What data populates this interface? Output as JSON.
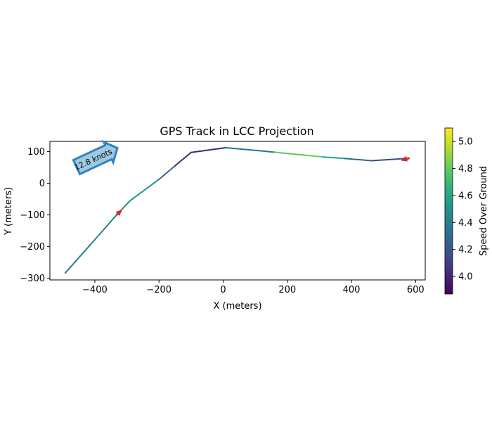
{
  "chart_data": {
    "type": "line",
    "title": "GPS Track in LCC Projection",
    "xlabel": "X (meters)",
    "ylabel": "Y (meters)",
    "xlim": [
      -540,
      630
    ],
    "ylim": [
      -305,
      132
    ],
    "x_ticks": [
      -400,
      -200,
      0,
      200,
      400,
      600
    ],
    "x_tick_labels": [
      "−400",
      "−200",
      "0",
      "200",
      "400",
      "600"
    ],
    "y_ticks": [
      -300,
      -200,
      -100,
      0,
      100
    ],
    "y_tick_labels": [
      "−300",
      "−200",
      "−100",
      "0",
      "100"
    ],
    "grid": false,
    "colormap": "viridis",
    "colorbar": {
      "label": "Speed Over Ground",
      "range": [
        3.87,
        5.1
      ],
      "ticks": [
        4.0,
        4.2,
        4.4,
        4.6,
        4.8,
        5.0
      ],
      "tick_labels": [
        "4.0",
        "4.2",
        "4.4",
        "4.6",
        "4.8",
        "5.0"
      ]
    },
    "track": [
      {
        "x": -492,
        "y": -283,
        "speed": 4.38
      },
      {
        "x": -400,
        "y": -178,
        "speed": 4.38
      },
      {
        "x": -332,
        "y": -100,
        "speed": 4.45
      },
      {
        "x": -290,
        "y": -55,
        "speed": 4.5
      },
      {
        "x": -200,
        "y": 12,
        "speed": 4.52
      },
      {
        "x": -150,
        "y": 55,
        "speed": 4.05
      },
      {
        "x": -100,
        "y": 97,
        "speed": 4.0
      },
      {
        "x": 8,
        "y": 112,
        "speed": 4.0
      },
      {
        "x": 160,
        "y": 98,
        "speed": 4.68
      },
      {
        "x": 260,
        "y": 88,
        "speed": 4.9
      },
      {
        "x": 310,
        "y": 83,
        "speed": 4.75
      },
      {
        "x": 380,
        "y": 78,
        "speed": 4.45
      },
      {
        "x": 462,
        "y": 71,
        "speed": 4.15
      },
      {
        "x": 540,
        "y": 76,
        "speed": 4.15
      },
      {
        "x": 580,
        "y": 79,
        "speed": 4.2
      }
    ],
    "direction_arrows": [
      {
        "x": -332,
        "y": -100,
        "dx": 14,
        "dy": 14,
        "color": "#d62728"
      },
      {
        "x": 580,
        "y": 79,
        "dx": -22,
        "dy": -6,
        "color": "#d62728"
      }
    ],
    "annotation": {
      "text": "12.8 knots",
      "x": -420,
      "y": 68,
      "fill": "#9ecae1",
      "edge": "#3182bd"
    }
  }
}
